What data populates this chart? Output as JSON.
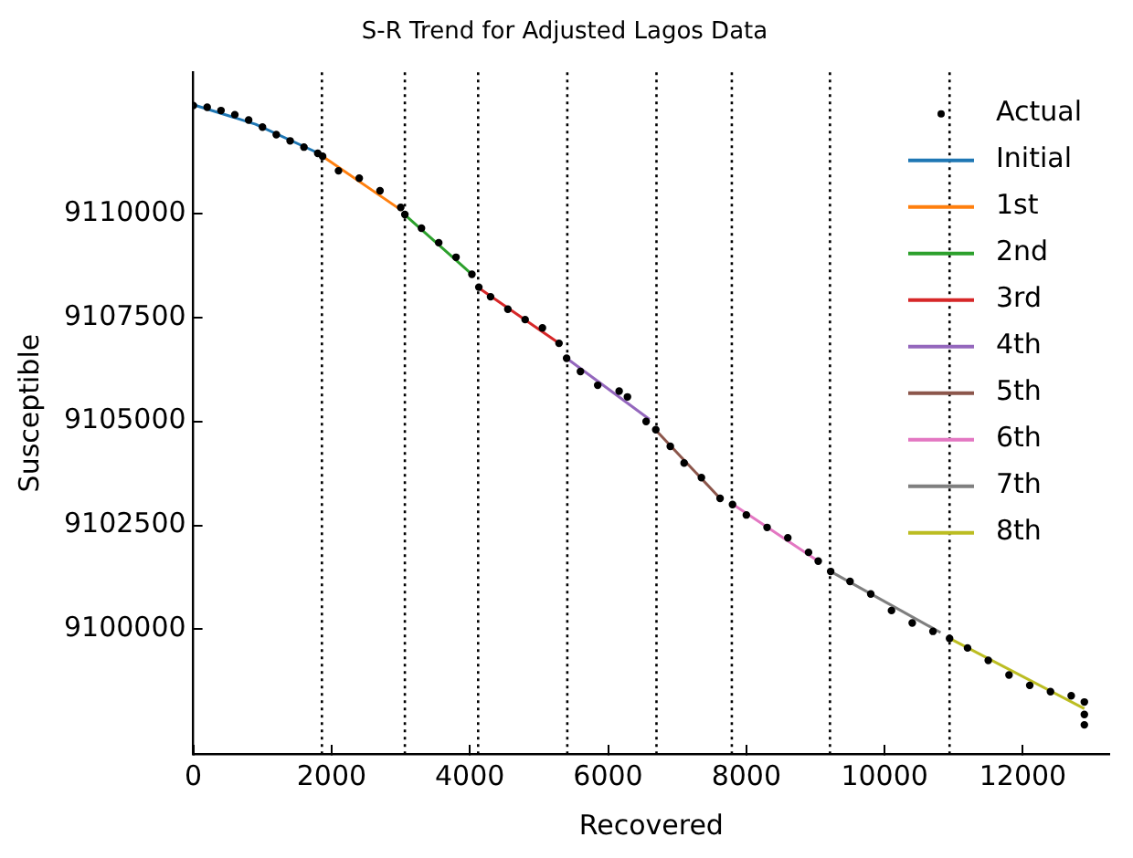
{
  "chart_data": {
    "type": "line",
    "title": "S-R Trend for Adjusted Lagos Data",
    "xlabel": "Recovered",
    "ylabel": "Susceptible",
    "xlim": [
      0,
      13250
    ],
    "ylim": [
      9097000,
      9113400
    ],
    "xticks": [
      0,
      2000,
      4000,
      6000,
      8000,
      10000,
      12000
    ],
    "yticks": [
      9100000,
      9102500,
      9105000,
      9107500,
      9110000
    ],
    "grid": false,
    "legend": "top right",
    "series": [
      {
        "name": "Actual",
        "type": "scatter",
        "marker": "circle",
        "color": "#000000",
        "x": [
          0,
          200,
          400,
          600,
          800,
          1000,
          1200,
          1400,
          1600,
          1800,
          1870,
          2100,
          2400,
          2700,
          3000,
          3060,
          3300,
          3550,
          3800,
          4030,
          4130,
          4300,
          4550,
          4800,
          5050,
          5290,
          5400,
          5600,
          5850,
          6160,
          6280,
          6550,
          6690,
          6900,
          7100,
          7350,
          7620,
          7800,
          8000,
          8300,
          8600,
          8900,
          9040,
          9220,
          9500,
          9800,
          10100,
          10400,
          10700,
          10940,
          11200,
          11500,
          11800,
          12100,
          12400,
          12700,
          12890,
          12890,
          12890
        ],
        "values": [
          9112600,
          9112560,
          9112480,
          9112380,
          9112250,
          9112080,
          9111900,
          9111750,
          9111600,
          9111450,
          9111380,
          9111030,
          9110850,
          9110550,
          9110150,
          9109980,
          9109650,
          9109300,
          9108950,
          9108540,
          9108230,
          9108000,
          9107700,
          9107450,
          9107250,
          9106880,
          9106520,
          9106200,
          9105870,
          9105730,
          9105590,
          9105000,
          9104800,
          9104400,
          9104000,
          9103650,
          9103150,
          9103000,
          9102750,
          9102450,
          9102200,
          9101850,
          9101640,
          9101390,
          9101150,
          9100850,
          9100450,
          9100150,
          9099950,
          9099780,
          9099550,
          9099250,
          9098900,
          9098650,
          9098500,
          9098400,
          9098250,
          9097950,
          9097700
        ]
      },
      {
        "name": "Initial",
        "color": "#1f77b4",
        "x": [
          0,
          900,
          1815
        ],
        "values": [
          9112620,
          9112150,
          9111450
        ]
      },
      {
        "name": "1st",
        "color": "#ff7f0e",
        "x": [
          1870,
          3010
        ],
        "values": [
          9111380,
          9110080
        ]
      },
      {
        "name": "2nd",
        "color": "#2ca02c",
        "x": [
          3060,
          4030
        ],
        "values": [
          9109970,
          9108540
        ]
      },
      {
        "name": "3rd",
        "color": "#d62728",
        "x": [
          4130,
          5290
        ],
        "values": [
          9108210,
          9106880
        ]
      },
      {
        "name": "4th",
        "color": "#9467bd",
        "x": [
          5400,
          6600
        ],
        "values": [
          9106520,
          9105050
        ]
      },
      {
        "name": "5th",
        "color": "#8c564b",
        "x": [
          6690,
          7620
        ],
        "values": [
          9104790,
          9103150
        ]
      },
      {
        "name": "6th",
        "color": "#e377c2",
        "x": [
          7800,
          9040
        ],
        "values": [
          9103010,
          9101640
        ]
      },
      {
        "name": "7th",
        "color": "#7f7f7f",
        "x": [
          9220,
          10810
        ],
        "values": [
          9101390,
          9099920
        ]
      },
      {
        "name": "8th",
        "color": "#bcbd22",
        "x": [
          10940,
          12890
        ],
        "values": [
          9099780,
          9098090
        ]
      }
    ],
    "ref_lines": [
      {
        "axis": "x",
        "value": 1860,
        "color": "#000000",
        "line_style": "dotted"
      },
      {
        "axis": "x",
        "value": 3060,
        "color": "#000000",
        "line_style": "dotted"
      },
      {
        "axis": "x",
        "value": 4120,
        "color": "#000000",
        "line_style": "dotted"
      },
      {
        "axis": "x",
        "value": 5410,
        "color": "#000000",
        "line_style": "dotted"
      },
      {
        "axis": "x",
        "value": 6700,
        "color": "#000000",
        "line_style": "dotted"
      },
      {
        "axis": "x",
        "value": 7790,
        "color": "#000000",
        "line_style": "dotted"
      },
      {
        "axis": "x",
        "value": 9210,
        "color": "#000000",
        "line_style": "dotted"
      },
      {
        "axis": "x",
        "value": 10940,
        "color": "#000000",
        "line_style": "dotted"
      }
    ]
  }
}
